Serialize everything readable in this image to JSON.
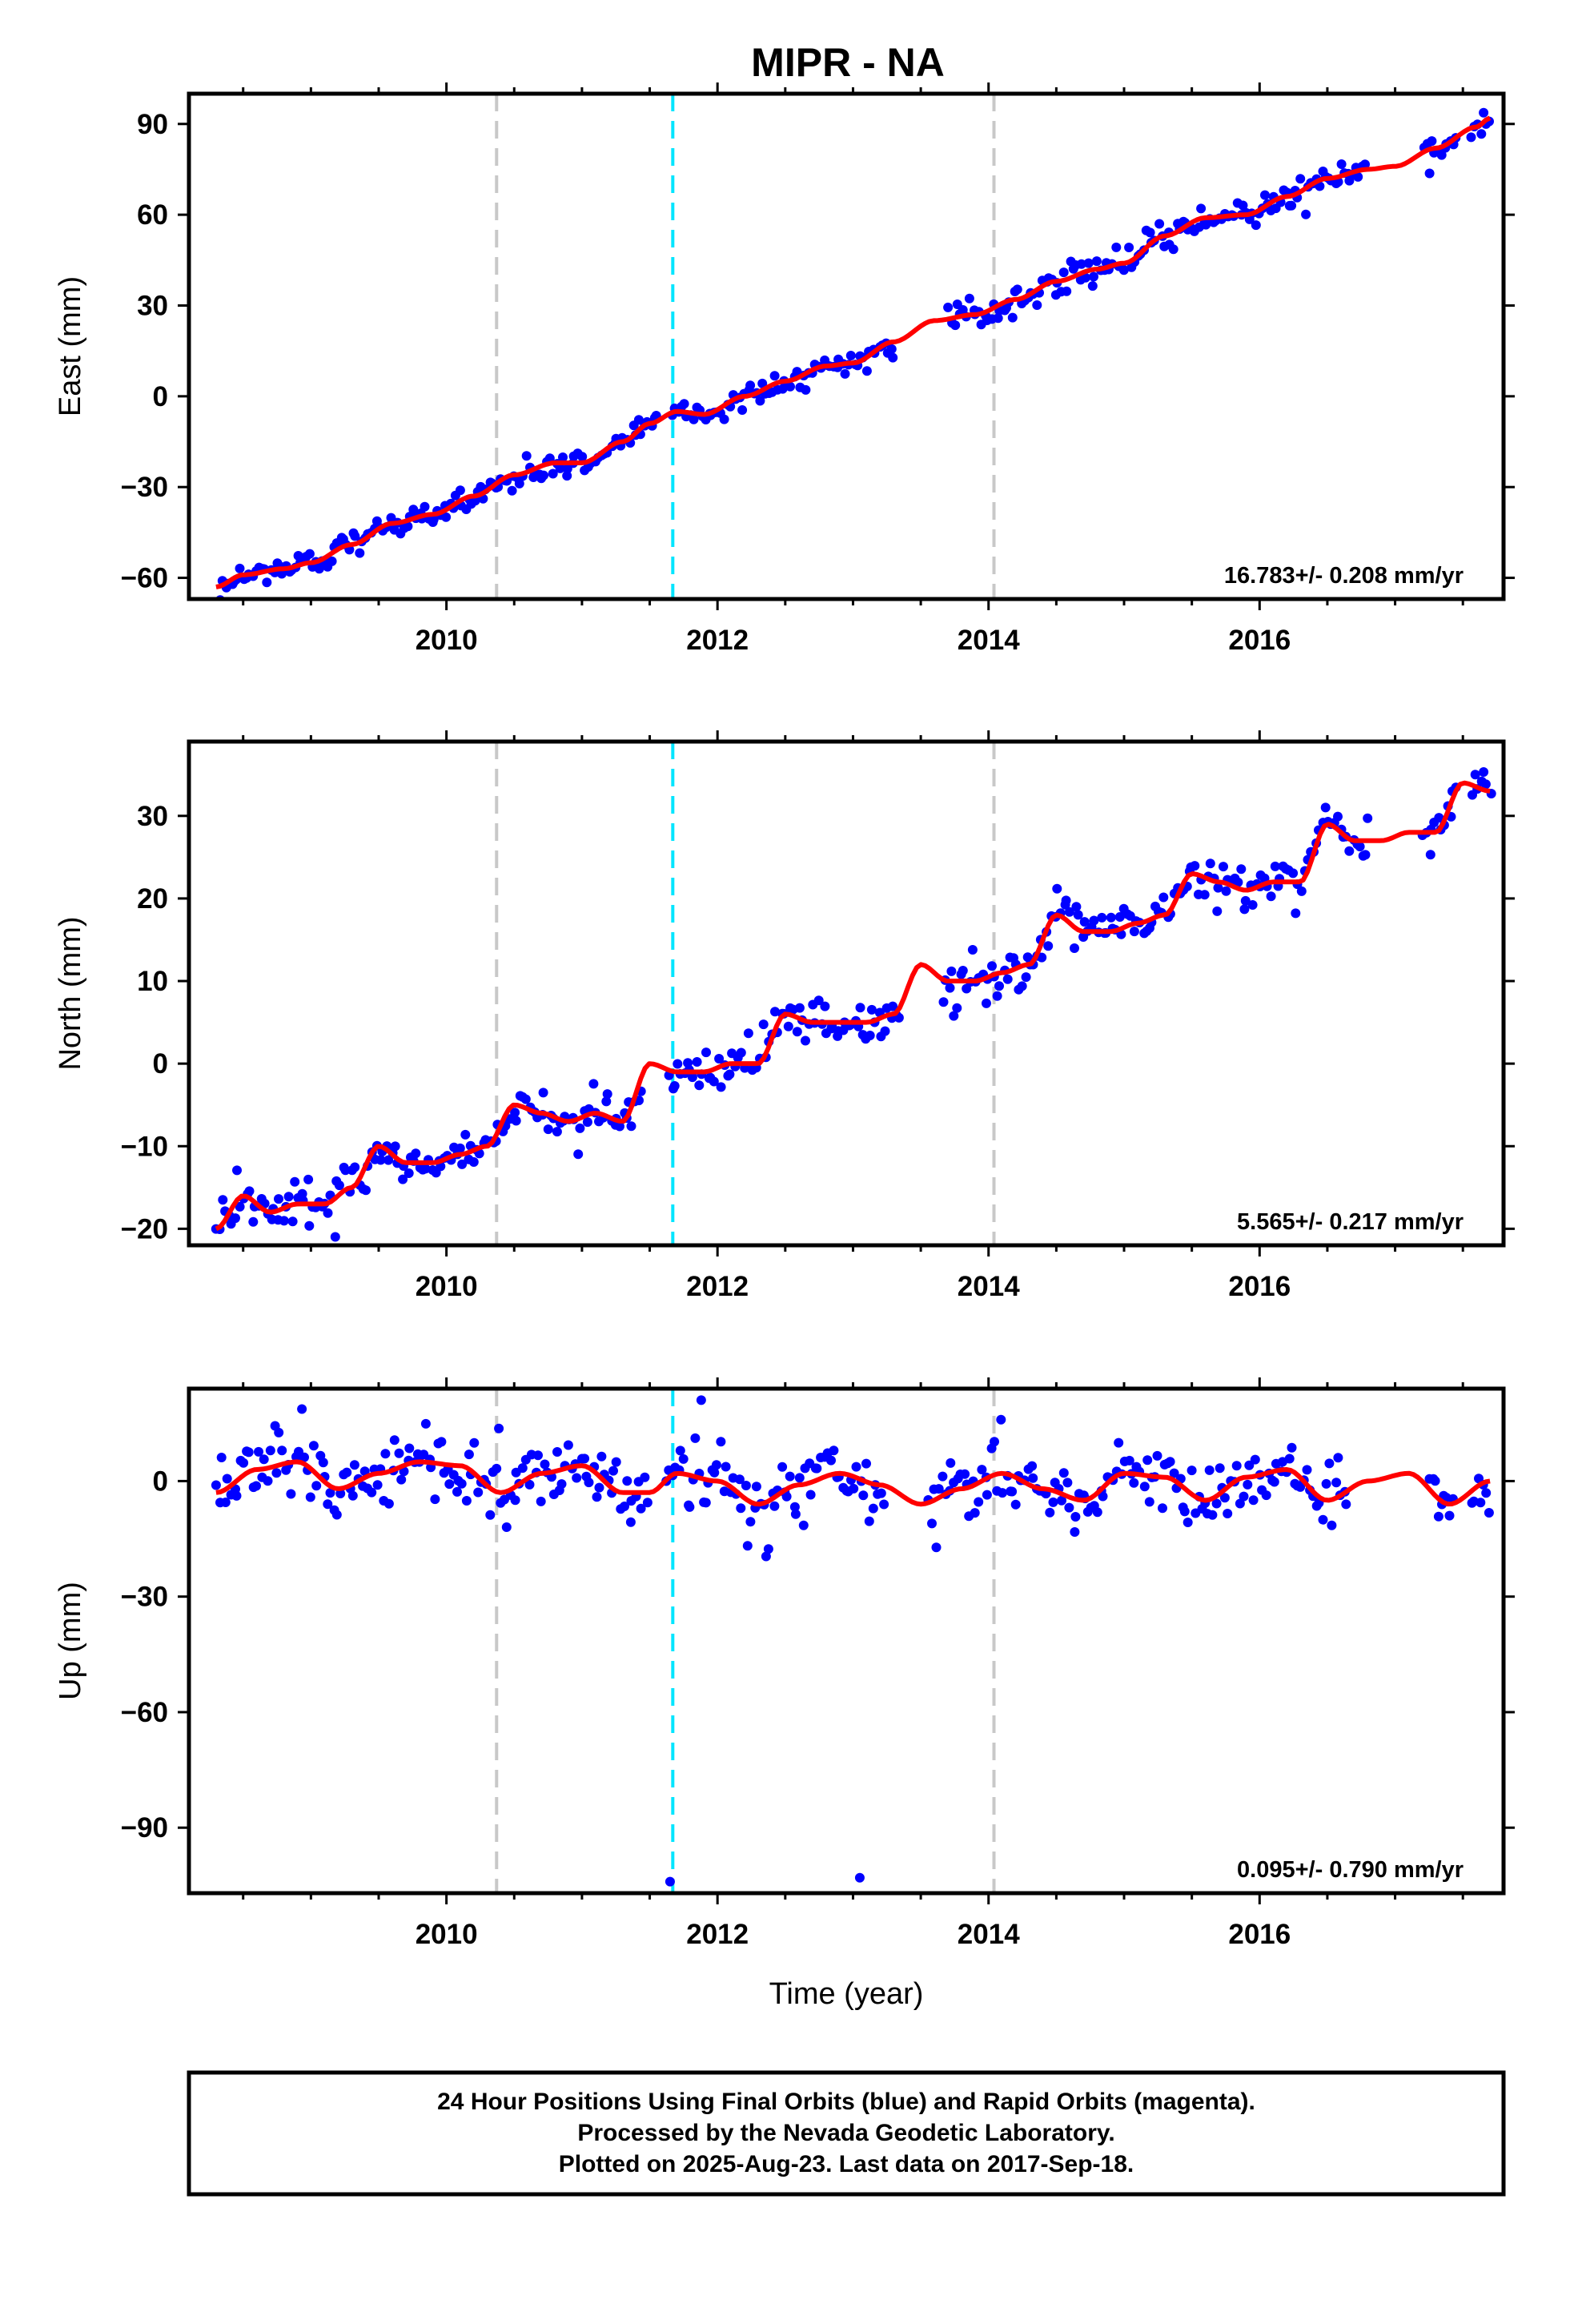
{
  "title": "MIPR - NA",
  "footer": {
    "line1": "24 Hour Positions Using Final Orbits (blue) and Rapid Orbits (magenta).",
    "line2": "Processed by the Nevada Geodetic Laboratory.",
    "line3": "Plotted on 2025-Aug-23. Last data on 2017-Sep-18."
  },
  "colors": {
    "points": "#0000ff",
    "fit": "#ff0000",
    "equipment_change": "#c8c8c8",
    "earthquake": "#00e5ff",
    "frame": "#000000"
  },
  "chart_data": [
    {
      "type": "scatter",
      "panel": "east",
      "ylabel": "East (mm)",
      "xlabel": "",
      "xlim": [
        2008.1,
        2017.8
      ],
      "ylim": [
        -67,
        100
      ],
      "yticks": [
        -60,
        -30,
        0,
        30,
        60,
        90
      ],
      "xticks": [
        2010,
        2012,
        2014,
        2016
      ],
      "rate_label": "16.783+/- 0.208 mm/yr",
      "vlines_gray": [
        2010.37,
        2014.04
      ],
      "vlines_cyan": [
        2011.67
      ],
      "series": [
        {
          "role": "fit",
          "x": [
            2008.3,
            2008.5,
            2008.8,
            2009.0,
            2009.3,
            2009.6,
            2009.9,
            2010.2,
            2010.5,
            2010.8,
            2011.0,
            2011.3,
            2011.5,
            2011.7,
            2011.9,
            2012.2,
            2012.5,
            2012.8,
            2013.0,
            2013.3,
            2013.6,
            2013.9,
            2014.2,
            2014.5,
            2014.8,
            2015.0,
            2015.3,
            2015.6,
            2015.9,
            2016.2,
            2016.5,
            2016.8,
            2017.0,
            2017.3,
            2017.6,
            2017.7
          ],
          "y": [
            -63,
            -59,
            -57,
            -55,
            -49,
            -42,
            -39,
            -33,
            -26,
            -22,
            -22,
            -15,
            -9,
            -5,
            -6,
            0,
            5,
            10,
            11,
            18,
            25,
            27,
            32,
            38,
            42,
            44,
            53,
            59,
            60,
            66,
            72,
            75,
            76,
            82,
            89,
            92
          ]
        },
        {
          "role": "daily",
          "x_start": 2008.3,
          "x_end": 2017.7,
          "n": 420,
          "noise": 2.2,
          "outlier_prob": 0.01,
          "outlier_scale": 6,
          "gaps": [
            [
              2011.55,
              2011.65
            ],
            [
              2013.3,
              2013.7
            ],
            [
              2016.8,
              2017.2
            ],
            [
              2017.45,
              2017.55
            ]
          ]
        }
      ]
    },
    {
      "type": "scatter",
      "panel": "north",
      "ylabel": "North (mm)",
      "xlabel": "",
      "xlim": [
        2008.1,
        2017.8
      ],
      "ylim": [
        -22,
        39
      ],
      "yticks": [
        -20,
        -10,
        0,
        10,
        20,
        30
      ],
      "xticks": [
        2010,
        2012,
        2014,
        2016
      ],
      "rate_label": "5.565+/- 0.217 mm/yr",
      "vlines_gray": [
        2010.37,
        2014.04
      ],
      "vlines_cyan": [
        2011.67
      ],
      "series": [
        {
          "role": "fit",
          "x": [
            2008.3,
            2008.5,
            2008.7,
            2008.9,
            2009.1,
            2009.3,
            2009.5,
            2009.7,
            2009.9,
            2010.1,
            2010.3,
            2010.5,
            2010.7,
            2010.9,
            2011.1,
            2011.3,
            2011.5,
            2011.7,
            2011.9,
            2012.1,
            2012.3,
            2012.5,
            2012.7,
            2012.9,
            2013.1,
            2013.3,
            2013.5,
            2013.7,
            2013.9,
            2014.1,
            2014.3,
            2014.5,
            2014.7,
            2014.9,
            2015.1,
            2015.3,
            2015.5,
            2015.7,
            2015.9,
            2016.1,
            2016.3,
            2016.5,
            2016.7,
            2016.9,
            2017.1,
            2017.3,
            2017.5,
            2017.7
          ],
          "y": [
            -20,
            -16,
            -18,
            -17,
            -17,
            -15,
            -10,
            -12,
            -12,
            -11,
            -10,
            -5,
            -6,
            -7,
            -6,
            -7,
            0,
            -1,
            -1,
            0,
            0,
            6,
            5,
            5,
            5,
            6,
            12,
            10,
            10,
            11,
            12,
            18,
            16,
            16,
            17,
            18,
            23,
            22,
            21,
            22,
            22,
            29,
            27,
            27,
            28,
            28,
            34,
            33
          ]
        },
        {
          "role": "daily",
          "x_start": 2008.3,
          "x_end": 2017.7,
          "n": 420,
          "noise": 1.3,
          "outlier_prob": 0.01,
          "outlier_scale": 4,
          "gaps": [
            [
              2011.45,
              2011.62
            ],
            [
              2013.35,
              2013.65
            ],
            [
              2016.8,
              2017.2
            ],
            [
              2017.45,
              2017.55
            ]
          ]
        }
      ]
    },
    {
      "type": "scatter",
      "panel": "up",
      "ylabel": "Up (mm)",
      "xlabel": "Time (year)",
      "xlim": [
        2008.1,
        2017.8
      ],
      "ylim": [
        -107,
        24
      ],
      "yticks": [
        -90,
        -60,
        -30,
        0
      ],
      "xticks": [
        2010,
        2012,
        2014,
        2016
      ],
      "rate_label": "0.095+/- 0.790 mm/yr",
      "vlines_gray": [
        2010.37,
        2014.04
      ],
      "vlines_cyan": [
        2011.67
      ],
      "series": [
        {
          "role": "fit",
          "x": [
            2008.3,
            2008.6,
            2008.9,
            2009.2,
            2009.5,
            2009.8,
            2010.1,
            2010.4,
            2010.7,
            2011.0,
            2011.3,
            2011.5,
            2011.7,
            2012.0,
            2012.3,
            2012.6,
            2012.9,
            2013.2,
            2013.5,
            2013.8,
            2014.1,
            2014.4,
            2014.7,
            2015.0,
            2015.3,
            2015.6,
            2015.9,
            2016.2,
            2016.5,
            2016.8,
            2017.1,
            2017.4,
            2017.7
          ],
          "y": [
            -3,
            3,
            5,
            -2,
            2,
            5,
            4,
            -3,
            2,
            4,
            -3,
            -3,
            2,
            0,
            -6,
            -1,
            2,
            -1,
            -6,
            -2,
            2,
            -2,
            -5,
            2,
            1,
            -5,
            1,
            3,
            -5,
            0,
            2,
            -6,
            0
          ]
        },
        {
          "role": "daily",
          "x_start": 2008.3,
          "x_end": 2017.7,
          "n": 420,
          "noise": 4.5,
          "outlier_prob": 0.015,
          "outlier_scale": 10,
          "gaps": [
            [
              2011.5,
              2011.62
            ],
            [
              2013.25,
              2013.55
            ],
            [
              2016.65,
              2017.25
            ],
            [
              2017.45,
              2017.55
            ]
          ],
          "extra_points": [
            {
              "x": 2011.65,
              "y": -104
            },
            {
              "x": 2013.05,
              "y": -103
            },
            {
              "x": 2011.88,
              "y": 21
            }
          ]
        }
      ]
    }
  ]
}
